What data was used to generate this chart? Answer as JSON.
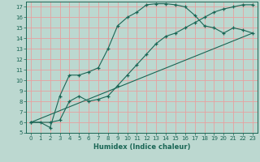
{
  "xlabel": "Humidex (Indice chaleur)",
  "xlim": [
    -0.5,
    23.5
  ],
  "ylim": [
    5,
    17.5
  ],
  "yticks": [
    5,
    6,
    7,
    8,
    9,
    10,
    11,
    12,
    13,
    14,
    15,
    16,
    17
  ],
  "xticks": [
    0,
    1,
    2,
    3,
    4,
    5,
    6,
    7,
    8,
    9,
    10,
    11,
    12,
    13,
    14,
    15,
    16,
    17,
    18,
    19,
    20,
    21,
    22,
    23
  ],
  "bg_color": "#bcd8d0",
  "grid_color": "#e8a0a0",
  "line_color": "#1a6655",
  "curve1_x": [
    0,
    1,
    2,
    3,
    4,
    5,
    6,
    7,
    8,
    9,
    10,
    11,
    12,
    13,
    14,
    15,
    16,
    17,
    18,
    19,
    20,
    21,
    22,
    23
  ],
  "curve1_y": [
    6,
    6,
    5.5,
    8.5,
    10.5,
    10.5,
    10.8,
    11.2,
    13.0,
    15.2,
    16.0,
    16.5,
    17.2,
    17.3,
    17.3,
    17.2,
    17.0,
    16.2,
    15.2,
    15.0,
    14.5,
    15.0,
    14.8,
    14.5
  ],
  "curve2_x": [
    0,
    2,
    3,
    4,
    5,
    6,
    7,
    8,
    9,
    10,
    11,
    12,
    13,
    14,
    15,
    16,
    17,
    18,
    19,
    20,
    21,
    22,
    23
  ],
  "curve2_y": [
    6,
    6.0,
    6.2,
    8.0,
    8.5,
    8.0,
    8.2,
    8.5,
    9.5,
    10.5,
    11.5,
    12.5,
    13.5,
    14.2,
    14.5,
    15.0,
    15.5,
    16.0,
    16.5,
    16.8,
    17.0,
    17.2,
    17.2
  ],
  "curve3_x": [
    0,
    23
  ],
  "curve3_y": [
    6,
    14.5
  ],
  "marker": "+"
}
